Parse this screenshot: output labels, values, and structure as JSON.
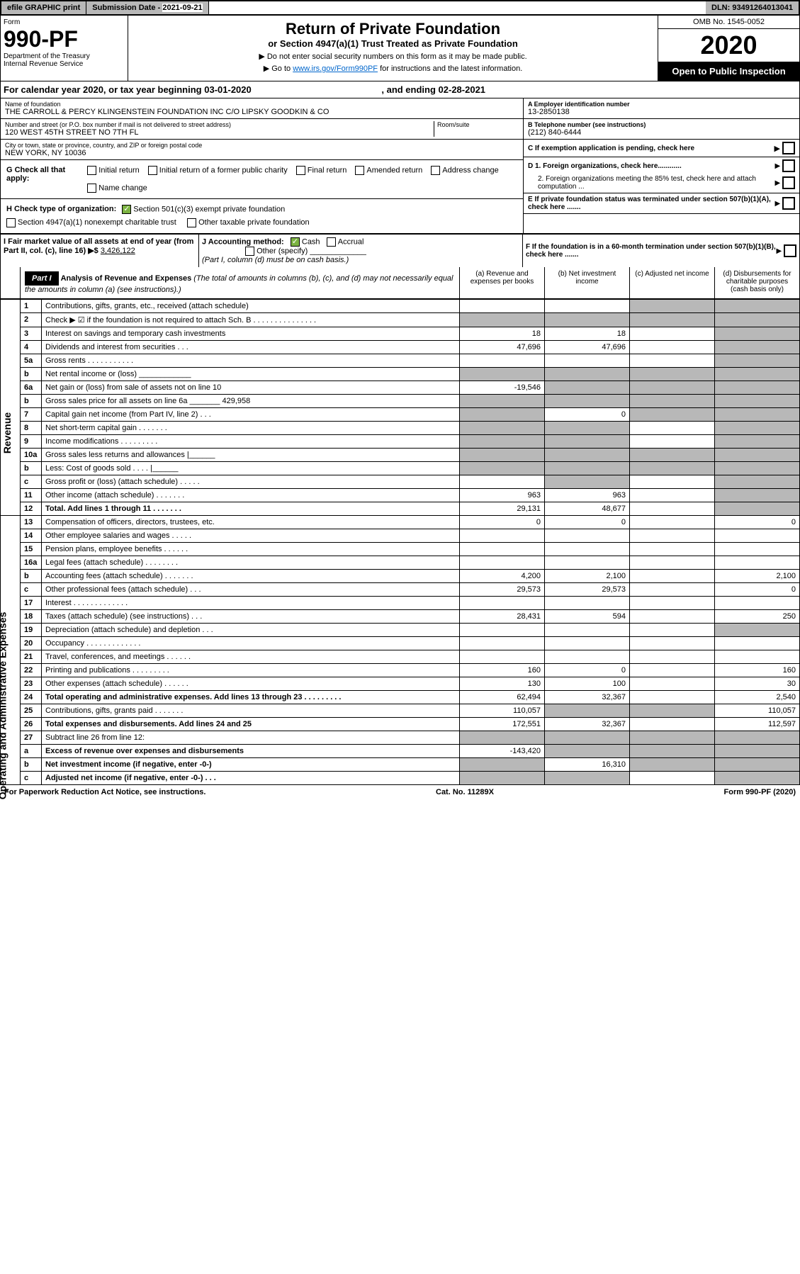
{
  "topbar": {
    "efile": "efile GRAPHIC print",
    "sub_label": "Submission Date - ",
    "sub_date": "2021-09-21",
    "dln_label": "DLN: ",
    "dln": "93491264013041"
  },
  "header": {
    "form_word": "Form",
    "form_num": "990-PF",
    "dept": "Department of the Treasury",
    "irs": "Internal Revenue Service",
    "title": "Return of Private Foundation",
    "subtitle": "or Section 4947(a)(1) Trust Treated as Private Foundation",
    "instr1": "▶ Do not enter social security numbers on this form as it may be made public.",
    "instr2_pre": "▶ Go to ",
    "instr2_link": "www.irs.gov/Form990PF",
    "instr2_post": " for instructions and the latest information.",
    "omb": "OMB No. 1545-0052",
    "year": "2020",
    "open": "Open to Public Inspection"
  },
  "calyear": {
    "pre": "For calendar year 2020, or tax year beginning ",
    "begin": "03-01-2020",
    "mid": " , and ending ",
    "end": "02-28-2021"
  },
  "info": {
    "name_label": "Name of foundation",
    "name": "THE CARROLL & PERCY KLINGENSTEIN FOUNDATION INC C/O LIPSKY GOODKIN & CO",
    "addr_label": "Number and street (or P.O. box number if mail is not delivered to street address)",
    "addr": "120 WEST 45TH STREET NO 7TH FL",
    "room_label": "Room/suite",
    "city_label": "City or town, state or province, country, and ZIP or foreign postal code",
    "city": "NEW YORK, NY  10036",
    "a_label": "A Employer identification number",
    "a_val": "13-2850138",
    "b_label": "B Telephone number (see instructions)",
    "b_val": "(212) 840-6444",
    "c_label": "C If exemption application is pending, check here",
    "d1": "D 1. Foreign organizations, check here............",
    "d2": "2. Foreign organizations meeting the 85% test, check here and attach computation ...",
    "e_label": "E  If private foundation status was terminated under section 507(b)(1)(A), check here .......",
    "f_label": "F  If the foundation is in a 60-month termination under section 507(b)(1)(B), check here .......",
    "g_label": "G Check all that apply:",
    "g_opts": [
      "Initial return",
      "Initial return of a former public charity",
      "Final return",
      "Amended return",
      "Address change",
      "Name change"
    ],
    "h_label": "H Check type of organization:",
    "h1": "Section 501(c)(3) exempt private foundation",
    "h2": "Section 4947(a)(1) nonexempt charitable trust",
    "h3": "Other taxable private foundation",
    "i_label": "I Fair market value of all assets at end of year (from Part II, col. (c), line 16) ▶$ ",
    "i_val": "3,426,122",
    "j_label": "J Accounting method:",
    "j_cash": "Cash",
    "j_accrual": "Accrual",
    "j_other": "Other (specify)",
    "j_note": "(Part I, column (d) must be on cash basis.)"
  },
  "part1": {
    "label": "Part I",
    "title": "Analysis of Revenue and Expenses",
    "note": "(The total of amounts in columns (b), (c), and (d) may not necessarily equal the amounts in column (a) (see instructions).)",
    "col_a": "(a) Revenue and expenses per books",
    "col_b": "(b) Net investment income",
    "col_c": "(c) Adjusted net income",
    "col_d": "(d) Disbursements for charitable purposes (cash basis only)",
    "rev_label": "Revenue",
    "exp_label": "Operating and Administrative Expenses"
  },
  "rows": [
    {
      "n": "1",
      "l": "Contributions, gifts, grants, etc., received (attach schedule)",
      "a": "",
      "b": "",
      "c": "grey",
      "d": "grey"
    },
    {
      "n": "2",
      "l": "Check ▶ ☑ if the foundation is not required to attach Sch. B      .  .  .  .  .  .  .  .  .  .  .  .  .  .  .",
      "a": "grey",
      "b": "grey",
      "c": "grey",
      "d": "grey"
    },
    {
      "n": "3",
      "l": "Interest on savings and temporary cash investments",
      "a": "18",
      "b": "18",
      "c": "",
      "d": "grey"
    },
    {
      "n": "4",
      "l": "Dividends and interest from securities     .   .   .",
      "a": "47,696",
      "b": "47,696",
      "c": "",
      "d": "grey"
    },
    {
      "n": "5a",
      "l": "Gross rents     .   .   .   .   .   .   .   .   .   .   .",
      "a": "",
      "b": "",
      "c": "",
      "d": "grey"
    },
    {
      "n": "b",
      "l": "Net rental income or (loss)   ____________",
      "a": "grey",
      "b": "grey",
      "c": "grey",
      "d": "grey"
    },
    {
      "n": "6a",
      "l": "Net gain or (loss) from sale of assets not on line 10",
      "a": "-19,546",
      "b": "grey",
      "c": "grey",
      "d": "grey"
    },
    {
      "n": "b",
      "l": "Gross sales price for all assets on line 6a _______ 429,958",
      "a": "grey",
      "b": "grey",
      "c": "grey",
      "d": "grey"
    },
    {
      "n": "7",
      "l": "Capital gain net income (from Part IV, line 2)   .   .   .",
      "a": "grey",
      "b": "0",
      "c": "grey",
      "d": "grey"
    },
    {
      "n": "8",
      "l": "Net short-term capital gain   .   .   .   .   .   .   .",
      "a": "grey",
      "b": "grey",
      "c": "",
      "d": "grey"
    },
    {
      "n": "9",
      "l": "Income modifications  .   .   .   .   .   .   .   .   .",
      "a": "grey",
      "b": "grey",
      "c": "",
      "d": "grey"
    },
    {
      "n": "10a",
      "l": "Gross sales less returns and allowances  |______",
      "a": "grey",
      "b": "grey",
      "c": "grey",
      "d": "grey"
    },
    {
      "n": "b",
      "l": "Less: Cost of goods sold     .   .   .   .       |______",
      "a": "grey",
      "b": "grey",
      "c": "grey",
      "d": "grey"
    },
    {
      "n": "c",
      "l": "Gross profit or (loss) (attach schedule)     .   .   .   .   .",
      "a": "",
      "b": "grey",
      "c": "",
      "d": "grey"
    },
    {
      "n": "11",
      "l": "Other income (attach schedule)    .   .   .   .   .   .   .",
      "a": "963",
      "b": "963",
      "c": "",
      "d": "grey"
    },
    {
      "n": "12",
      "l": "Total. Add lines 1 through 11    .   .   .   .   .   .   .",
      "a": "29,131",
      "b": "48,677",
      "c": "",
      "d": "grey",
      "bold": true
    },
    {
      "n": "13",
      "l": "Compensation of officers, directors, trustees, etc.",
      "a": "0",
      "b": "0",
      "c": "",
      "d": "0"
    },
    {
      "n": "14",
      "l": "Other employee salaries and wages    .   .   .   .   .",
      "a": "",
      "b": "",
      "c": "",
      "d": ""
    },
    {
      "n": "15",
      "l": "Pension plans, employee benefits   .   .   .   .   .   .",
      "a": "",
      "b": "",
      "c": "",
      "d": ""
    },
    {
      "n": "16a",
      "l": "Legal fees (attach schedule) .   .   .   .   .   .   .   .",
      "a": "",
      "b": "",
      "c": "",
      "d": ""
    },
    {
      "n": "b",
      "l": "Accounting fees (attach schedule) .   .   .   .   .   .   .",
      "a": "4,200",
      "b": "2,100",
      "c": "",
      "d": "2,100"
    },
    {
      "n": "c",
      "l": "Other professional fees (attach schedule)    .   .   .",
      "a": "29,573",
      "b": "29,573",
      "c": "",
      "d": "0"
    },
    {
      "n": "17",
      "l": "Interest  .   .   .   .   .   .   .   .   .   .   .   .   .",
      "a": "",
      "b": "",
      "c": "",
      "d": ""
    },
    {
      "n": "18",
      "l": "Taxes (attach schedule) (see instructions)    .   .   .",
      "a": "28,431",
      "b": "594",
      "c": "",
      "d": "250"
    },
    {
      "n": "19",
      "l": "Depreciation (attach schedule) and depletion   .   .   .",
      "a": "",
      "b": "",
      "c": "",
      "d": "grey"
    },
    {
      "n": "20",
      "l": "Occupancy .   .   .   .   .   .   .   .   .   .   .   .   .",
      "a": "",
      "b": "",
      "c": "",
      "d": ""
    },
    {
      "n": "21",
      "l": "Travel, conferences, and meetings .   .   .   .   .   .",
      "a": "",
      "b": "",
      "c": "",
      "d": ""
    },
    {
      "n": "22",
      "l": "Printing and publications  .   .   .   .   .   .   .   .   .",
      "a": "160",
      "b": "0",
      "c": "",
      "d": "160"
    },
    {
      "n": "23",
      "l": "Other expenses (attach schedule)  .   .   .   .   .   .",
      "a": "130",
      "b": "100",
      "c": "",
      "d": "30"
    },
    {
      "n": "24",
      "l": "Total operating and administrative expenses. Add lines 13 through 23   .   .   .   .   .   .   .   .   .",
      "a": "62,494",
      "b": "32,367",
      "c": "",
      "d": "2,540",
      "bold": true
    },
    {
      "n": "25",
      "l": "Contributions, gifts, grants paid    .    .    .    .    .    .   .",
      "a": "110,057",
      "b": "grey",
      "c": "grey",
      "d": "110,057"
    },
    {
      "n": "26",
      "l": "Total expenses and disbursements. Add lines 24 and 25",
      "a": "172,551",
      "b": "32,367",
      "c": "",
      "d": "112,597",
      "bold": true
    },
    {
      "n": "27",
      "l": "Subtract line 26 from line 12:",
      "a": "grey",
      "b": "grey",
      "c": "grey",
      "d": "grey"
    },
    {
      "n": "a",
      "l": "Excess of revenue over expenses and disbursements",
      "a": "-143,420",
      "b": "grey",
      "c": "grey",
      "d": "grey",
      "bold": true
    },
    {
      "n": "b",
      "l": "Net investment income (if negative, enter -0-)",
      "a": "grey",
      "b": "16,310",
      "c": "grey",
      "d": "grey",
      "bold": true
    },
    {
      "n": "c",
      "l": "Adjusted net income (if negative, enter -0-)   .   .   .",
      "a": "grey",
      "b": "grey",
      "c": "",
      "d": "grey",
      "bold": true
    }
  ],
  "footer": {
    "left": "For Paperwork Reduction Act Notice, see instructions.",
    "mid": "Cat. No. 11289X",
    "right": "Form 990-PF (2020)"
  }
}
